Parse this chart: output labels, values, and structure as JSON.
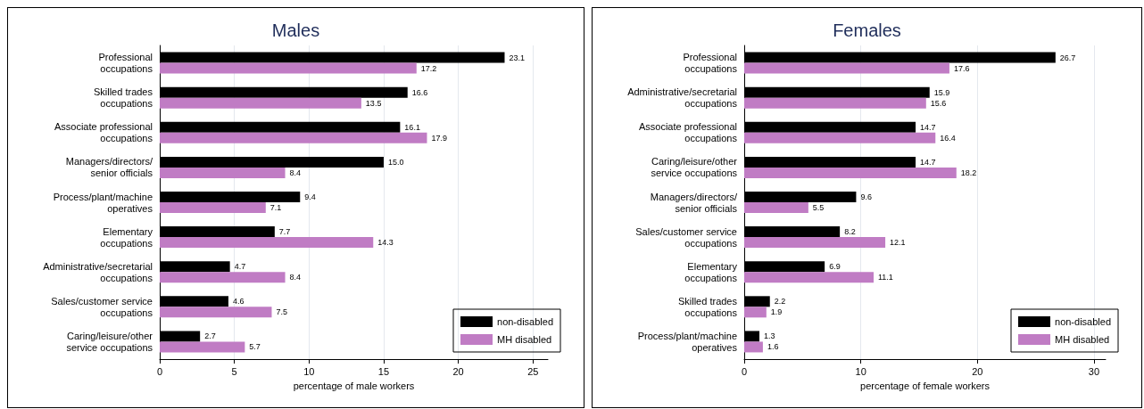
{
  "chart_data": [
    {
      "type": "bar",
      "orientation": "horizontal",
      "title": "Males",
      "xlabel": "percentage of male workers",
      "categories": [
        "Professional\noccupations",
        "Skilled trades\noccupations",
        "Associate professional\noccupations",
        "Managers/directors/\nsenior officials",
        "Process/plant/machine\noperatives",
        "Elementary\noccupations",
        "Administrative/secretarial\noccupations",
        "Sales/customer service\noccupations",
        "Caring/leisure/other\nservice occupations"
      ],
      "series": [
        {
          "name": "non-disabled",
          "color": "#000000",
          "values": [
            23.1,
            16.6,
            16.1,
            15.0,
            9.4,
            7.7,
            4.7,
            4.6,
            2.7
          ],
          "value_labels": [
            "23.1",
            "16.6",
            "16.1",
            "15.0",
            "9.4",
            "7.7",
            "4.7",
            "4.6",
            "2.7"
          ]
        },
        {
          "name": "MH disabled",
          "color": "#c07cc4",
          "values": [
            17.2,
            13.5,
            17.9,
            8.4,
            7.1,
            14.3,
            8.4,
            7.5,
            5.7
          ]
        }
      ],
      "xlim": [
        0,
        26
      ],
      "xticks": [
        0,
        5,
        10,
        15,
        20,
        25
      ],
      "grid": "x",
      "legend": "bottom right",
      "data_labels": true
    },
    {
      "type": "bar",
      "orientation": "horizontal",
      "title": "Females",
      "xlabel": "percentage of female workers",
      "categories": [
        "Professional\noccupations",
        "Administrative/secretarial\noccupations",
        "Associate professional\noccupations",
        "Caring/leisure/other\nservice occupations",
        "Managers/directors/\nsenior officials",
        "Sales/customer service\noccupations",
        "Elementary\noccupations",
        "Skilled trades\noccupations",
        "Process/plant/machine\noperatives"
      ],
      "series": [
        {
          "name": "non-disabled",
          "color": "#000000",
          "values": [
            26.7,
            15.9,
            14.7,
            14.7,
            9.6,
            8.2,
            6.9,
            2.2,
            1.3
          ]
        },
        {
          "name": "MH disabled",
          "color": "#c07cc4",
          "values": [
            17.6,
            15.6,
            16.4,
            18.2,
            5.5,
            12.1,
            11.1,
            1.9,
            1.6
          ]
        }
      ],
      "xlim": [
        0,
        31
      ],
      "xticks": [
        0,
        10,
        20,
        30
      ],
      "grid": "x",
      "legend": "bottom right",
      "data_labels": true
    }
  ]
}
